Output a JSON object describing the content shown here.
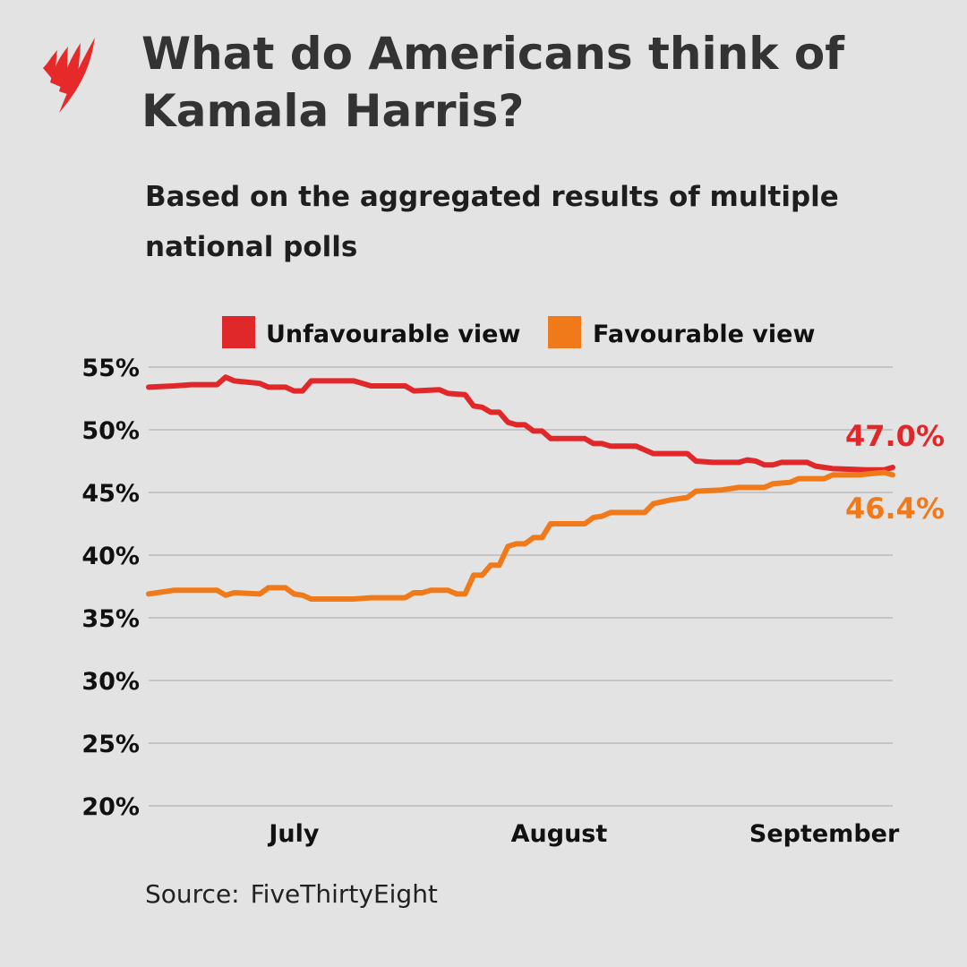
{
  "header": {
    "title": "What do Americans think of Kamala Harris?",
    "subtitle": "Based on the aggregated results of multiple national polls",
    "logo": "SBS"
  },
  "footer": {
    "source_label": "Source:",
    "source_name": "FiveThirtyEight"
  },
  "chart_data": {
    "type": "line",
    "title": "",
    "xlabel": "",
    "ylabel": "",
    "ylim": [
      20,
      55
    ],
    "xlim": [
      "2024-06-14",
      "2024-09-09"
    ],
    "grid": true,
    "legend_position": "top",
    "y_ticks": [
      55,
      50,
      45,
      40,
      35,
      30,
      25,
      20
    ],
    "y_tick_labels": [
      "55%",
      "50%",
      "45%",
      "40%",
      "35%",
      "30%",
      "25%",
      "20%"
    ],
    "x_ticks": [
      "2024-07-01",
      "2024-08-01",
      "2024-09-01"
    ],
    "x_tick_labels": [
      "July",
      "August",
      "September"
    ],
    "series": [
      {
        "name": "Unfavourable view",
        "color": "#e0282a",
        "end_label": "47.0%",
        "points": [
          [
            "2024-06-14",
            53.4
          ],
          [
            "2024-06-17",
            53.5
          ],
          [
            "2024-06-19",
            53.6
          ],
          [
            "2024-06-22",
            53.6
          ],
          [
            "2024-06-23",
            54.2
          ],
          [
            "2024-06-24",
            53.9
          ],
          [
            "2024-06-27",
            53.7
          ],
          [
            "2024-06-28",
            53.4
          ],
          [
            "2024-06-30",
            53.4
          ],
          [
            "2024-07-01",
            53.1
          ],
          [
            "2024-07-02",
            53.1
          ],
          [
            "2024-07-03",
            53.9
          ],
          [
            "2024-07-08",
            53.9
          ],
          [
            "2024-07-10",
            53.5
          ],
          [
            "2024-07-14",
            53.5
          ],
          [
            "2024-07-15",
            53.1
          ],
          [
            "2024-07-18",
            53.2
          ],
          [
            "2024-07-19",
            52.9
          ],
          [
            "2024-07-21",
            52.8
          ],
          [
            "2024-07-22",
            51.9
          ],
          [
            "2024-07-23",
            51.8
          ],
          [
            "2024-07-24",
            51.4
          ],
          [
            "2024-07-25",
            51.4
          ],
          [
            "2024-07-26",
            50.6
          ],
          [
            "2024-07-27",
            50.4
          ],
          [
            "2024-07-28",
            50.4
          ],
          [
            "2024-07-29",
            49.9
          ],
          [
            "2024-07-30",
            49.9
          ],
          [
            "2024-07-31",
            49.3
          ],
          [
            "2024-08-04",
            49.3
          ],
          [
            "2024-08-05",
            48.9
          ],
          [
            "2024-08-06",
            48.9
          ],
          [
            "2024-08-07",
            48.7
          ],
          [
            "2024-08-10",
            48.7
          ],
          [
            "2024-08-12",
            48.1
          ],
          [
            "2024-08-16",
            48.1
          ],
          [
            "2024-08-17",
            47.5
          ],
          [
            "2024-08-19",
            47.4
          ],
          [
            "2024-08-22",
            47.4
          ],
          [
            "2024-08-23",
            47.6
          ],
          [
            "2024-08-24",
            47.5
          ],
          [
            "2024-08-25",
            47.2
          ],
          [
            "2024-08-26",
            47.2
          ],
          [
            "2024-08-27",
            47.4
          ],
          [
            "2024-08-30",
            47.4
          ],
          [
            "2024-08-31",
            47.1
          ],
          [
            "2024-09-02",
            46.9
          ],
          [
            "2024-09-06",
            46.8
          ],
          [
            "2024-09-08",
            46.8
          ],
          [
            "2024-09-09",
            47.0
          ]
        ]
      },
      {
        "name": "Favourable view",
        "color": "#f07a1a",
        "end_label": "46.4%",
        "points": [
          [
            "2024-06-14",
            36.9
          ],
          [
            "2024-06-17",
            37.2
          ],
          [
            "2024-06-22",
            37.2
          ],
          [
            "2024-06-23",
            36.8
          ],
          [
            "2024-06-24",
            37.0
          ],
          [
            "2024-06-27",
            36.9
          ],
          [
            "2024-06-28",
            37.4
          ],
          [
            "2024-06-30",
            37.4
          ],
          [
            "2024-07-01",
            36.9
          ],
          [
            "2024-07-02",
            36.8
          ],
          [
            "2024-07-03",
            36.5
          ],
          [
            "2024-07-08",
            36.5
          ],
          [
            "2024-07-10",
            36.6
          ],
          [
            "2024-07-14",
            36.6
          ],
          [
            "2024-07-15",
            37.0
          ],
          [
            "2024-07-16",
            37.0
          ],
          [
            "2024-07-17",
            37.2
          ],
          [
            "2024-07-19",
            37.2
          ],
          [
            "2024-07-20",
            36.9
          ],
          [
            "2024-07-21",
            36.9
          ],
          [
            "2024-07-22",
            38.4
          ],
          [
            "2024-07-23",
            38.4
          ],
          [
            "2024-07-24",
            39.2
          ],
          [
            "2024-07-25",
            39.2
          ],
          [
            "2024-07-26",
            40.7
          ],
          [
            "2024-07-27",
            40.9
          ],
          [
            "2024-07-28",
            40.9
          ],
          [
            "2024-07-29",
            41.4
          ],
          [
            "2024-07-30",
            41.4
          ],
          [
            "2024-07-31",
            42.5
          ],
          [
            "2024-08-04",
            42.5
          ],
          [
            "2024-08-05",
            43.0
          ],
          [
            "2024-08-06",
            43.1
          ],
          [
            "2024-08-07",
            43.4
          ],
          [
            "2024-08-11",
            43.4
          ],
          [
            "2024-08-12",
            44.1
          ],
          [
            "2024-08-14",
            44.4
          ],
          [
            "2024-08-16",
            44.6
          ],
          [
            "2024-08-17",
            45.1
          ],
          [
            "2024-08-20",
            45.2
          ],
          [
            "2024-08-22",
            45.4
          ],
          [
            "2024-08-25",
            45.4
          ],
          [
            "2024-08-26",
            45.7
          ],
          [
            "2024-08-28",
            45.8
          ],
          [
            "2024-08-29",
            46.1
          ],
          [
            "2024-09-01",
            46.1
          ],
          [
            "2024-09-02",
            46.4
          ],
          [
            "2024-09-05",
            46.4
          ],
          [
            "2024-09-08",
            46.6
          ],
          [
            "2024-09-09",
            46.4
          ]
        ]
      }
    ]
  }
}
